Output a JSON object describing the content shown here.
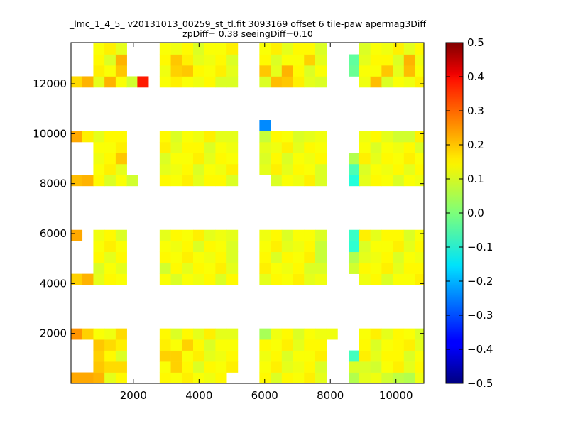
{
  "chart_data": {
    "type": "heatmap",
    "title": "_lmc_1_4_5_ v20131013_00259_st_tl.fit 3093169 offset 6 tile-paw apermag3Diff",
    "subtitle": "zpDiff= 0.38 seeingDiff=0.10",
    "xlabel": "",
    "ylabel": "",
    "xlim": [
      100,
      10850
    ],
    "ylim": [
      0,
      13650
    ],
    "xticks": [
      {
        "v": 2000,
        "label": "2000"
      },
      {
        "v": 4000,
        "label": "4000"
      },
      {
        "v": 6000,
        "label": "6000"
      },
      {
        "v": 8000,
        "label": "8000"
      },
      {
        "v": 10000,
        "label": "10000"
      }
    ],
    "yticks": [
      {
        "v": 2000,
        "label": "2000"
      },
      {
        "v": 4000,
        "label": "4000"
      },
      {
        "v": 6000,
        "label": "6000"
      },
      {
        "v": 8000,
        "label": "8000"
      },
      {
        "v": 10000,
        "label": "10000"
      },
      {
        "v": 12000,
        "label": "12000"
      }
    ],
    "colorbar": {
      "min": -0.5,
      "max": 0.5,
      "colormap": "jet",
      "ticks": [
        {
          "v": 0.5,
          "label": "0.5"
        },
        {
          "v": 0.4,
          "label": "0.4"
        },
        {
          "v": 0.3,
          "label": "0.3"
        },
        {
          "v": 0.2,
          "label": "0.2"
        },
        {
          "v": 0.1,
          "label": "0.1"
        },
        {
          "v": 0.0,
          "label": "0.0"
        },
        {
          "v": -0.1,
          "label": "−0.1"
        },
        {
          "v": -0.2,
          "label": "−0.2"
        },
        {
          "v": -0.3,
          "label": "−0.3"
        },
        {
          "v": -0.4,
          "label": "−0.4"
        },
        {
          "v": -0.5,
          "label": "−0.5"
        }
      ]
    },
    "cell_size": [
      340,
      440
    ],
    "tile_columns": [
      {
        "x0": 100,
        "cols": 3
      },
      {
        "x0": 1120,
        "cols": 2
      },
      {
        "x0": 2800,
        "cols": 3
      },
      {
        "x0": 3820,
        "cols": 4
      },
      {
        "x0": 5840,
        "cols": 3
      },
      {
        "x0": 6860,
        "cols": 3
      },
      {
        "x0": 8560,
        "cols": 1
      },
      {
        "x0": 8880,
        "cols": 6
      }
    ],
    "tile_rows": [
      {
        "y0": 0,
        "rows": 5
      },
      {
        "y0": 3950,
        "rows": 5
      },
      {
        "y0": 7910,
        "rows": 5
      },
      {
        "y0": 11860,
        "rows": 4
      }
    ],
    "base_values": [
      0.14,
      0.13,
      0.12,
      0.11,
      0.13,
      0.12,
      0.1,
      0.09
    ],
    "overrides": [
      {
        "x": 100,
        "y": 0,
        "v": 0.21
      },
      {
        "x": 440,
        "y": 0,
        "v": 0.21
      },
      {
        "x": 780,
        "y": 0,
        "v": 0.2
      },
      {
        "x": 100,
        "y": 1760,
        "v": 0.23
      },
      {
        "x": 440,
        "y": 1760,
        "v": 0.17
      },
      {
        "x": 780,
        "y": 1320,
        "v": 0.18
      },
      {
        "x": 780,
        "y": 880,
        "v": 0.17
      },
      {
        "x": 780,
        "y": 440,
        "v": 0.18
      },
      {
        "x": 1120,
        "y": 440,
        "v": 0.16
      },
      {
        "x": 1460,
        "y": 440,
        "v": 0.16
      },
      {
        "x": 1120,
        "y": 1320,
        "v": 0.16
      },
      {
        "x": 1460,
        "y": 1760,
        "v": 0.16
      },
      {
        "x": 2800,
        "y": 880,
        "v": 0.17
      },
      {
        "x": 3140,
        "y": 880,
        "v": 0.17
      },
      {
        "x": 3480,
        "y": 1320,
        "v": 0.17
      },
      {
        "x": 3140,
        "y": 440,
        "v": 0.17
      },
      {
        "x": 3820,
        "y": 1760,
        "v": 0.1
      },
      {
        "x": 4840,
        "y": 1760,
        "v": 0.1
      },
      {
        "x": 5840,
        "y": 1760,
        "v": 0.04
      },
      {
        "x": 7880,
        "y": 1760,
        "v": 0.11
      },
      {
        "x": 8560,
        "y": 880,
        "v": -0.06
      },
      {
        "x": 8560,
        "y": 440,
        "v": 0.09
      },
      {
        "x": 8560,
        "y": 0,
        "v": 0.05
      },
      {
        "x": 9900,
        "y": 0,
        "v": 0.06
      },
      {
        "x": 10240,
        "y": 0,
        "v": 0.05
      },
      {
        "x": 9560,
        "y": 0,
        "v": 0.08
      },
      {
        "x": 9220,
        "y": 440,
        "v": 0.08
      },
      {
        "x": 9900,
        "y": 1320,
        "v": 0.13
      },
      {
        "x": 100,
        "y": 5710,
        "v": 0.21
      },
      {
        "x": 100,
        "y": 3950,
        "v": 0.17
      },
      {
        "x": 440,
        "y": 3950,
        "v": 0.2
      },
      {
        "x": 1460,
        "y": 4390,
        "v": 0.1
      },
      {
        "x": 2800,
        "y": 4390,
        "v": 0.08
      },
      {
        "x": 4840,
        "y": 5710,
        "v": 0.1
      },
      {
        "x": 4840,
        "y": 5270,
        "v": 0.09
      },
      {
        "x": 7540,
        "y": 5710,
        "v": 0.09
      },
      {
        "x": 7540,
        "y": 5270,
        "v": 0.07
      },
      {
        "x": 7540,
        "y": 4830,
        "v": 0.07
      },
      {
        "x": 7540,
        "y": 4390,
        "v": 0.09
      },
      {
        "x": 8560,
        "y": 5710,
        "v": -0.07
      },
      {
        "x": 8560,
        "y": 5270,
        "v": -0.08
      },
      {
        "x": 8560,
        "y": 4830,
        "v": 0.05
      },
      {
        "x": 8560,
        "y": 4390,
        "v": 0.08
      },
      {
        "x": 100,
        "y": 9670,
        "v": 0.21
      },
      {
        "x": 100,
        "y": 7910,
        "v": 0.19
      },
      {
        "x": 440,
        "y": 7910,
        "v": 0.2
      },
      {
        "x": 1460,
        "y": 8790,
        "v": 0.18
      },
      {
        "x": 1800,
        "y": 7910,
        "v": 0.08
      },
      {
        "x": 4840,
        "y": 9670,
        "v": 0.1
      },
      {
        "x": 5840,
        "y": 10110,
        "v": -0.24
      },
      {
        "x": 5840,
        "y": 9670,
        "v": 0.07
      },
      {
        "x": 5840,
        "y": 9230,
        "v": 0.1
      },
      {
        "x": 5840,
        "y": 8790,
        "v": 0.09
      },
      {
        "x": 5840,
        "y": 8350,
        "v": 0.1
      },
      {
        "x": 7200,
        "y": 9670,
        "v": 0.1
      },
      {
        "x": 7540,
        "y": 7910,
        "v": 0.09
      },
      {
        "x": 8560,
        "y": 8790,
        "v": 0.05
      },
      {
        "x": 8560,
        "y": 8350,
        "v": -0.05
      },
      {
        "x": 8560,
        "y": 7910,
        "v": -0.09
      },
      {
        "x": 9900,
        "y": 9670,
        "v": 0.08
      },
      {
        "x": 10240,
        "y": 9670,
        "v": 0.08
      },
      {
        "x": 100,
        "y": 11860,
        "v": 0.16
      },
      {
        "x": 440,
        "y": 11860,
        "v": 0.2
      },
      {
        "x": 1120,
        "y": 11860,
        "v": 0.2
      },
      {
        "x": 1460,
        "y": 12740,
        "v": 0.2
      },
      {
        "x": 1460,
        "y": 12300,
        "v": 0.18
      },
      {
        "x": 1800,
        "y": 11860,
        "v": 0.08
      },
      {
        "x": 2120,
        "y": 11860,
        "v": 0.35
      },
      {
        "x": 3140,
        "y": 12740,
        "v": 0.18
      },
      {
        "x": 3480,
        "y": 12300,
        "v": 0.18
      },
      {
        "x": 3140,
        "y": 12300,
        "v": 0.17
      },
      {
        "x": 4840,
        "y": 11860,
        "v": 0.09
      },
      {
        "x": 5840,
        "y": 12300,
        "v": 0.18
      },
      {
        "x": 6180,
        "y": 11860,
        "v": 0.19
      },
      {
        "x": 6520,
        "y": 12300,
        "v": 0.2
      },
      {
        "x": 6520,
        "y": 11860,
        "v": 0.18
      },
      {
        "x": 7200,
        "y": 12740,
        "v": 0.17
      },
      {
        "x": 7540,
        "y": 11860,
        "v": 0.09
      },
      {
        "x": 8560,
        "y": 12740,
        "v": -0.03
      },
      {
        "x": 8560,
        "y": 12300,
        "v": -0.02
      },
      {
        "x": 9220,
        "y": 11860,
        "v": 0.19
      },
      {
        "x": 9560,
        "y": 12300,
        "v": 0.18
      },
      {
        "x": 10240,
        "y": 12740,
        "v": 0.2
      },
      {
        "x": 10240,
        "y": 12300,
        "v": 0.19
      }
    ],
    "blank_cells": [
      {
        "x": 440,
        "y": 440
      },
      {
        "x": 440,
        "y": 880
      },
      {
        "x": 440,
        "y": 1320
      },
      {
        "x": 100,
        "y": 440
      },
      {
        "x": 100,
        "y": 880
      },
      {
        "x": 100,
        "y": 1320
      },
      {
        "x": 7880,
        "y": 0
      },
      {
        "x": 7880,
        "y": 440
      },
      {
        "x": 7880,
        "y": 880
      },
      {
        "x": 7880,
        "y": 1320
      },
      {
        "x": 8560,
        "y": 1320
      },
      {
        "x": 8560,
        "y": 1760
      },
      {
        "x": 4840,
        "y": 0
      },
      {
        "x": 100,
        "y": 4390
      },
      {
        "x": 100,
        "y": 4830
      },
      {
        "x": 100,
        "y": 5270
      },
      {
        "x": 440,
        "y": 4390
      },
      {
        "x": 440,
        "y": 4830
      },
      {
        "x": 440,
        "y": 5270
      },
      {
        "x": 440,
        "y": 5710
      },
      {
        "x": 8560,
        "y": 3950
      },
      {
        "x": 100,
        "y": 8350
      },
      {
        "x": 100,
        "y": 8790
      },
      {
        "x": 100,
        "y": 9230
      },
      {
        "x": 440,
        "y": 8350
      },
      {
        "x": 440,
        "y": 8790
      },
      {
        "x": 440,
        "y": 9230
      },
      {
        "x": 8560,
        "y": 9230
      },
      {
        "x": 8560,
        "y": 9670
      },
      {
        "x": 100,
        "y": 12300
      },
      {
        "x": 100,
        "y": 12740
      },
      {
        "x": 100,
        "y": 13180
      },
      {
        "x": 440,
        "y": 12300
      },
      {
        "x": 440,
        "y": 12740
      },
      {
        "x": 440,
        "y": 13180
      },
      {
        "x": 8560,
        "y": 11860
      },
      {
        "x": 8560,
        "y": 13180
      },
      {
        "x": 5840,
        "y": 7910
      }
    ]
  }
}
